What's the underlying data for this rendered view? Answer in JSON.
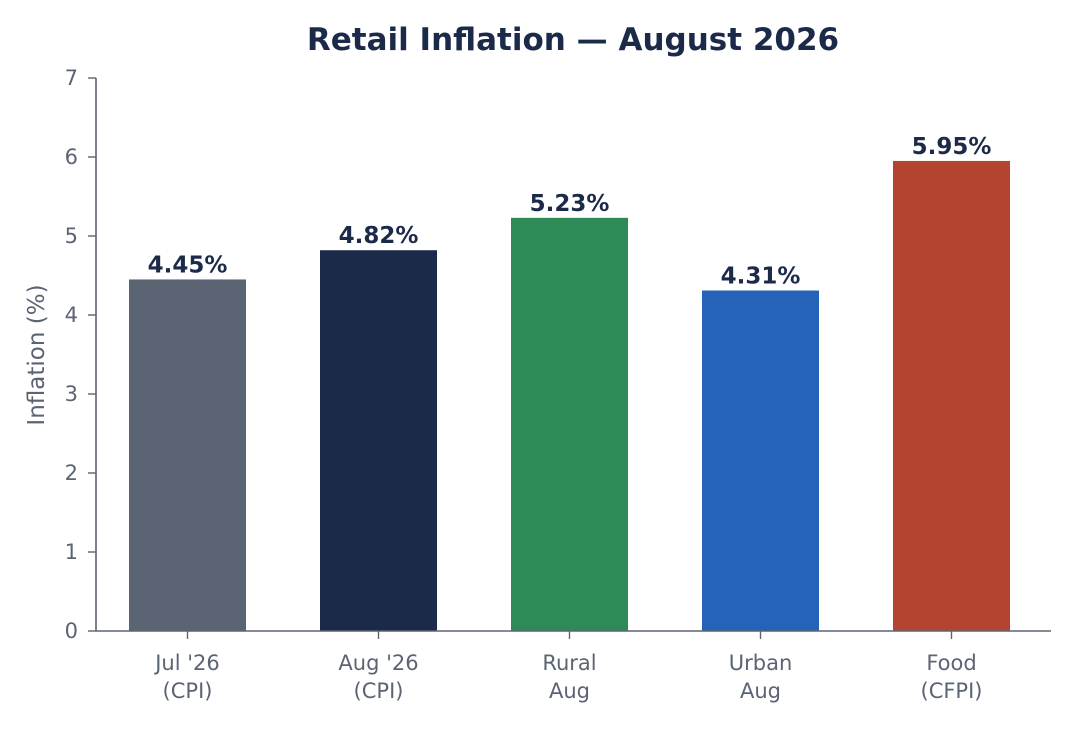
{
  "chart_data": {
    "type": "bar",
    "title": "Retail Inflation — August 2026",
    "xlabel": "",
    "ylabel": "Inflation (%)",
    "ylim": [
      0,
      7
    ],
    "yticks": [
      "0",
      "1",
      "2",
      "3",
      "4",
      "5",
      "6",
      "7"
    ],
    "categories": [
      [
        "Jul '26",
        "(CPI)"
      ],
      [
        "Aug '26",
        "(CPI)"
      ],
      [
        "Rural",
        "Aug"
      ],
      [
        "Urban",
        "Aug"
      ],
      [
        "Food",
        "(CFPI)"
      ]
    ],
    "values": [
      4.45,
      4.82,
      5.23,
      4.31,
      5.95
    ],
    "value_labels": [
      "4.45%",
      "4.82%",
      "5.23%",
      "4.31%",
      "5.95%"
    ],
    "bar_colors": [
      "#5b6473",
      "#1c2a4a",
      "#2e8b57",
      "#2563b8",
      "#b44430"
    ],
    "grid": false,
    "legend": "none"
  },
  "colors": {
    "title": "#1c2a4a",
    "data_label": "#1c2a4a",
    "axis": "#5b6473",
    "tick_text": "#5b6473"
  }
}
